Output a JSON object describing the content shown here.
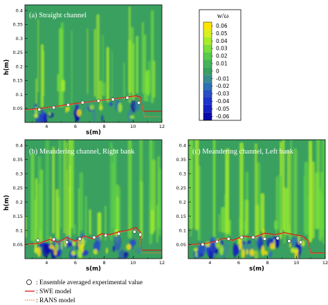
{
  "chart_data": [
    {
      "type": "heatmap",
      "title": "(a) Straight channel",
      "xlabel": "s(m)",
      "ylabel": "h(m)",
      "xlim": [
        2.5,
        12
      ],
      "ylim": [
        0,
        0.42
      ],
      "xticks": [
        "4",
        "6",
        "8",
        "10",
        "12"
      ],
      "yticks": [
        "0.05",
        "0.1",
        "0.15",
        "0.2",
        "0.25",
        "0.3",
        "0.35",
        "0.4"
      ],
      "swe_line": {
        "x": [
          2.5,
          3.5,
          4.5,
          5.5,
          6.5,
          7.5,
          8.5,
          9.5,
          10.2,
          10.5,
          10.7,
          12
        ],
        "y": [
          0.045,
          0.05,
          0.056,
          0.064,
          0.071,
          0.077,
          0.083,
          0.09,
          0.095,
          0.09,
          0.04,
          0.04
        ]
      },
      "rans_line": {
        "x": [
          2.5,
          3.5,
          4.5,
          5.5,
          6.5,
          7.5,
          8.5,
          9.5,
          10.2,
          10.5,
          10.8,
          12
        ],
        "y": [
          0.043,
          0.048,
          0.055,
          0.062,
          0.069,
          0.076,
          0.082,
          0.088,
          0.093,
          0.085,
          0.02,
          0.02
        ]
      },
      "experimental": {
        "x": [
          3.5,
          4.5,
          5.5,
          6.5,
          7.6,
          8.6,
          9.6,
          10.4
        ],
        "y": [
          0.046,
          0.053,
          0.063,
          0.071,
          0.077,
          0.082,
          0.088,
          0.07
        ]
      }
    },
    {
      "type": "heatmap",
      "title": "(b) Meandering channel, Right bank",
      "xlabel": "s(m)",
      "ylabel": "h(m)",
      "xlim": [
        2.5,
        12
      ],
      "ylim": [
        0,
        0.42
      ],
      "xticks": [
        "4",
        "6",
        "8",
        "10",
        "12"
      ],
      "yticks": [
        "0.05",
        "0.1",
        "0.15",
        "0.2",
        "0.25",
        "0.3",
        "0.35",
        "0.4"
      ],
      "swe_line": {
        "x": [
          2.5,
          3.5,
          4.2,
          4.8,
          5.4,
          6.0,
          6.6,
          7.2,
          7.8,
          8.4,
          9.0,
          9.6,
          10.2,
          10.5,
          10.6,
          12
        ],
        "y": [
          0.05,
          0.055,
          0.068,
          0.058,
          0.075,
          0.062,
          0.08,
          0.07,
          0.088,
          0.085,
          0.095,
          0.1,
          0.11,
          0.095,
          0.03,
          0.03
        ]
      },
      "rans_line": {
        "x": [
          2.5,
          3.5,
          4.2,
          4.8,
          5.4,
          6.0,
          6.6,
          7.2,
          7.8,
          8.4,
          9.0,
          9.6,
          10.2,
          10.5,
          10.6,
          12
        ],
        "y": [
          0.048,
          0.052,
          0.065,
          0.055,
          0.072,
          0.06,
          0.077,
          0.068,
          0.085,
          0.082,
          0.092,
          0.098,
          0.105,
          0.09,
          0.02,
          0.02
        ]
      },
      "experimental": {
        "x": [
          3.4,
          4.5,
          5.4,
          6.3,
          7.3,
          8.1,
          9.0,
          10.1,
          10.5
        ],
        "y": [
          0.065,
          0.068,
          0.058,
          0.07,
          0.075,
          0.082,
          0.088,
          0.095,
          0.085
        ]
      }
    },
    {
      "type": "heatmap",
      "title": "(c) Meandering channel, Left bank",
      "xlabel": "s(m)",
      "ylabel": "",
      "xlim": [
        2.5,
        12
      ],
      "ylim": [
        0,
        0.42
      ],
      "xticks": [
        "4",
        "6",
        "8",
        "10",
        "12"
      ],
      "yticks": [
        "0.05",
        "0.1",
        "0.15",
        "0.2",
        "0.25",
        "0.3",
        "0.35",
        "0.4"
      ],
      "swe_line": {
        "x": [
          2.5,
          3.5,
          4.3,
          5.0,
          5.6,
          6.3,
          7.0,
          7.8,
          8.5,
          9.2,
          9.8,
          10.4,
          10.8,
          11.0,
          12
        ],
        "y": [
          0.05,
          0.052,
          0.06,
          0.072,
          0.065,
          0.08,
          0.075,
          0.09,
          0.085,
          0.092,
          0.085,
          0.08,
          0.065,
          0.02,
          0.02
        ]
      },
      "rans_line": {
        "x": [
          2.5,
          3.5,
          4.3,
          5.0,
          5.6,
          6.3,
          7.0,
          7.8,
          8.5,
          9.2,
          9.8,
          10.4,
          10.8,
          11.0,
          12
        ],
        "y": [
          0.048,
          0.05,
          0.058,
          0.07,
          0.062,
          0.078,
          0.072,
          0.087,
          0.082,
          0.09,
          0.082,
          0.077,
          0.06,
          0.018,
          0.018
        ]
      },
      "experimental": {
        "x": [
          3.5,
          4.5,
          5.3,
          6.2,
          7.0,
          7.8,
          8.7,
          9.5,
          10.3
        ],
        "y": [
          0.05,
          0.06,
          0.07,
          0.075,
          0.075,
          0.07,
          0.072,
          0.062,
          0.058
        ]
      }
    }
  ],
  "colorbar": {
    "title": "w/ω",
    "ticks": [
      "0.06",
      "0.05",
      "0.04",
      "0.03",
      "0.02",
      "0.01",
      "0",
      "-0.01",
      "-0.02",
      "-0.03",
      "-0.04",
      "-0.05",
      "-0.06"
    ],
    "colors": [
      "#ffe400",
      "#d8f020",
      "#a8ec28",
      "#7ae03a",
      "#58cc4a",
      "#44b458",
      "#3aa060",
      "#3a8c8c",
      "#3070b4",
      "#2850c4",
      "#1e34cc",
      "#1420c0",
      "#0a0aa8"
    ]
  },
  "legend": [
    {
      "symbol": "circle",
      "label": ": Ensemble averaged experimental value"
    },
    {
      "symbol": "swe-line",
      "color": "#e01010",
      "label": ": SWE model"
    },
    {
      "symbol": "rans-line",
      "color": "#f08040",
      "label": ": RANS model"
    }
  ],
  "background_color": "#3aa060"
}
